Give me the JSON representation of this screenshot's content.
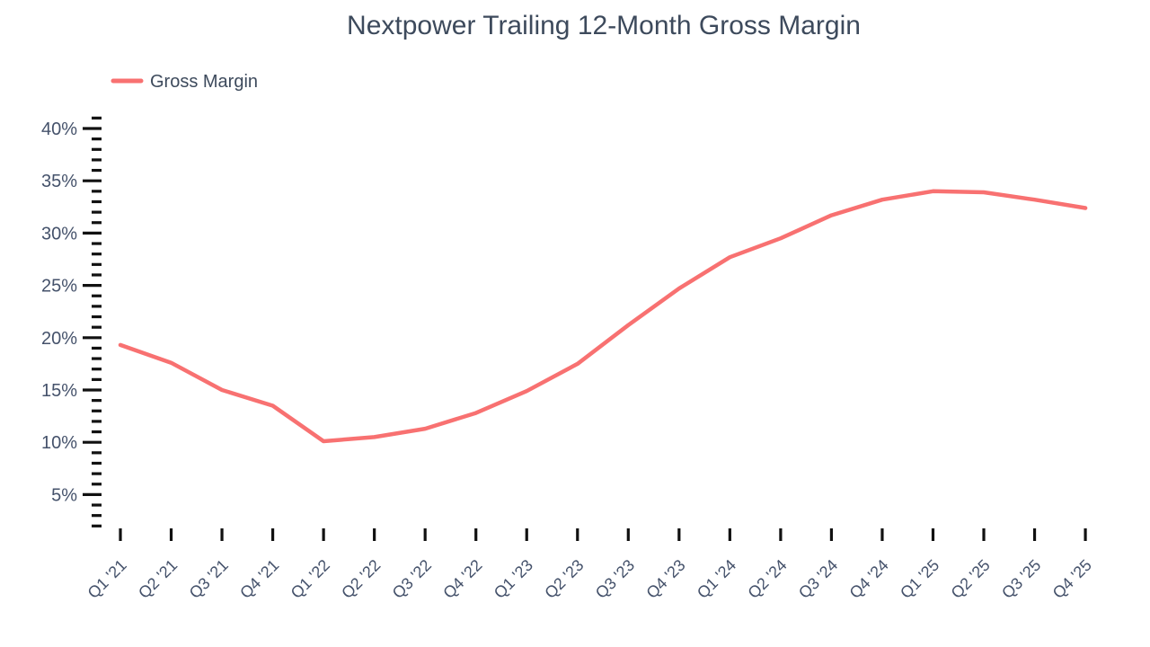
{
  "title": "Nextpower Trailing 12-Month Gross Margin",
  "legend": {
    "label": "Gross Margin",
    "swatch_color": "#f87171"
  },
  "colors": {
    "line": "#f87171",
    "axis_text": "#45526b",
    "tick": "#111111",
    "title_text": "#3d4a5c",
    "background": "#ffffff"
  },
  "chart_data": {
    "type": "line",
    "title": "Nextpower Trailing 12-Month Gross Margin",
    "xlabel": "",
    "ylabel": "",
    "legend_position": "top-left",
    "grid": false,
    "categories": [
      "Q1 '21",
      "Q2 '21",
      "Q3 '21",
      "Q4 '21",
      "Q1 '22",
      "Q2 '22",
      "Q3 '22",
      "Q4 '22",
      "Q1 '23",
      "Q2 '23",
      "Q3 '23",
      "Q4 '23",
      "Q1 '24",
      "Q2 '24",
      "Q3 '24",
      "Q4 '24",
      "Q1 '25",
      "Q2 '25",
      "Q3 '25",
      "Q4 '25"
    ],
    "series": [
      {
        "name": "Gross Margin",
        "unit": "%",
        "values": [
          19.3,
          17.6,
          15.0,
          13.5,
          10.1,
          10.5,
          11.3,
          12.8,
          14.9,
          17.5,
          21.2,
          24.7,
          27.7,
          29.5,
          31.7,
          33.2,
          34.0,
          33.9,
          33.2,
          32.4
        ]
      }
    ],
    "y_axis": {
      "major_ticks": [
        {
          "value": 40,
          "label": "40%"
        },
        {
          "value": 35,
          "label": "35%"
        },
        {
          "value": 30,
          "label": "30%"
        },
        {
          "value": 25,
          "label": "25%"
        },
        {
          "value": 20,
          "label": "20%"
        },
        {
          "value": 15,
          "label": "15%"
        },
        {
          "value": 10,
          "label": "10%"
        },
        {
          "value": 5,
          "label": "5%"
        }
      ],
      "minor_tick_every": 1,
      "minor_tick_range": [
        2,
        41
      ],
      "ylim": [
        0,
        42
      ]
    }
  }
}
